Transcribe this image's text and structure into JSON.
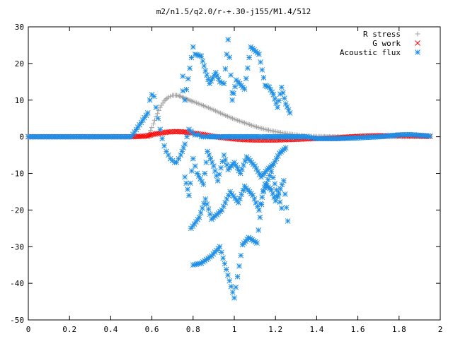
{
  "chart_data": {
    "type": "scatter",
    "title": "m2/n1.5/q2.0/r-+.30-j155/M1.4/512",
    "xlabel": "",
    "ylabel": "",
    "xlim": [
      0,
      2
    ],
    "ylim": [
      -50,
      30
    ],
    "x_ticks": [
      "0",
      "0.2",
      "0.4",
      "0.6",
      "0.8",
      "1",
      "1.2",
      "1.4",
      "1.6",
      "1.8",
      "2"
    ],
    "y_ticks": [
      "30",
      "20",
      "10",
      "0",
      "-10",
      "-20",
      "-30",
      "-40",
      "-50"
    ],
    "grid": false,
    "legend_position": "top-right",
    "series": [
      {
        "name": "R stress",
        "marker": "plus",
        "color": "#a0a0a0",
        "x": [
          0.0,
          0.1,
          0.2,
          0.3,
          0.4,
          0.5,
          0.58,
          0.6,
          0.62,
          0.64,
          0.66,
          0.68,
          0.7,
          0.72,
          0.74,
          0.76,
          0.78,
          0.8,
          0.85,
          0.9,
          0.95,
          1.0,
          1.05,
          1.1,
          1.15,
          1.2,
          1.25,
          1.3,
          1.35,
          1.4,
          1.5,
          1.6,
          1.7,
          1.8,
          1.9,
          1.95
        ],
        "y": [
          0,
          0,
          0,
          0,
          0,
          0,
          0.2,
          2.5,
          5.5,
          8.0,
          9.8,
          10.8,
          11.3,
          11.3,
          11.0,
          10.5,
          10.0,
          9.6,
          8.5,
          7.3,
          6.0,
          4.8,
          3.8,
          2.8,
          2.0,
          1.4,
          0.9,
          0.5,
          0.2,
          0.1,
          0,
          0,
          0,
          0,
          0,
          0
        ]
      },
      {
        "name": "G work",
        "marker": "cross",
        "color": "#ff0000",
        "x": [
          0.0,
          0.1,
          0.2,
          0.3,
          0.4,
          0.5,
          0.58,
          0.6,
          0.64,
          0.68,
          0.72,
          0.76,
          0.8,
          0.85,
          0.9,
          0.95,
          1.0,
          1.05,
          1.1,
          1.15,
          1.2,
          1.25,
          1.3,
          1.35,
          1.4,
          1.5,
          1.6,
          1.7,
          1.8,
          1.9,
          1.95
        ],
        "y": [
          0,
          0,
          0,
          0,
          0,
          0,
          0.2,
          0.6,
          1.0,
          1.3,
          1.4,
          1.3,
          1.0,
          0.6,
          0.1,
          -0.3,
          -0.6,
          -0.8,
          -0.9,
          -0.9,
          -0.9,
          -0.8,
          -0.7,
          -0.6,
          -0.5,
          -0.3,
          0.1,
          0.3,
          0.3,
          0.2,
          0.1
        ]
      },
      {
        "name": "Acoustic flux",
        "marker": "star",
        "color": "#1e8ee6",
        "x": [
          0.0,
          0.1,
          0.2,
          0.3,
          0.4,
          0.5,
          0.58,
          0.59,
          0.6,
          0.61,
          0.62,
          0.63,
          0.64,
          0.65,
          0.66,
          0.67,
          0.68,
          0.69,
          0.7,
          0.71,
          0.72,
          0.73,
          0.74,
          0.76,
          0.77,
          0.78,
          0.79,
          0.8,
          0.81,
          0.82,
          0.83,
          0.84,
          0.85,
          0.86,
          0.87,
          0.88,
          0.9,
          0.92,
          0.94,
          0.96,
          0.98,
          1.0,
          1.02,
          1.04,
          1.06,
          1.08,
          1.1,
          1.12,
          1.14,
          1.16,
          1.18,
          1.2,
          1.22,
          1.24,
          1.26,
          1.28,
          1.3,
          1.32,
          1.35,
          1.4,
          1.5,
          1.6,
          1.7,
          1.8,
          1.85,
          1.9,
          1.95,
          0.75,
          0.75,
          0.76,
          0.8,
          0.81,
          0.84,
          0.86,
          0.88,
          0.91,
          0.93,
          0.95,
          0.97,
          0.99,
          0.99,
          1.01,
          1.05,
          1.08,
          1.12,
          1.15,
          1.17,
          1.19,
          1.21,
          1.23,
          1.25,
          1.27,
          0.76,
          0.78,
          0.8,
          0.82,
          0.85,
          0.87,
          0.9,
          0.92,
          0.95,
          0.97,
          1.0,
          1.03,
          1.06,
          1.1,
          1.13,
          1.16,
          1.19,
          1.22,
          1.25,
          0.79,
          0.83,
          0.86,
          0.89,
          0.94,
          0.98,
          1.02,
          1.05,
          1.09,
          1.12,
          1.15,
          1.18,
          1.2,
          1.24,
          1.26,
          0.8,
          0.84,
          0.89,
          0.93,
          1.0,
          1.04,
          1.07,
          1.11,
          1.14,
          1.18,
          1.23
        ],
        "y": [
          0,
          0,
          0,
          0,
          0,
          0,
          6.5,
          10.0,
          11.5,
          11.0,
          8.0,
          5.0,
          2.0,
          -0.5,
          -2.5,
          -4.0,
          -5.0,
          -6.0,
          -6.5,
          -7.0,
          -7.0,
          -6.0,
          -5.0,
          -2.0,
          0.0,
          2.0,
          1.5,
          1.0,
          0.5,
          0.5,
          0.5,
          0.0,
          0.0,
          0.0,
          0.0,
          0.0,
          0.0,
          0.0,
          0.0,
          0.0,
          0.0,
          0.0,
          0.0,
          0.0,
          0.0,
          0.0,
          0.0,
          0.0,
          0.0,
          0.0,
          0.0,
          0.0,
          0.0,
          0.0,
          0.0,
          0.0,
          0.0,
          0.0,
          0.0,
          -0.5,
          -0.5,
          -0.3,
          0.0,
          0.5,
          0.6,
          0.4,
          0.2,
          16.5,
          12.5,
          10.0,
          24.5,
          22.5,
          22.0,
          18.0,
          14.5,
          17.5,
          15.0,
          14.5,
          26.5,
          12.0,
          10.0,
          15.5,
          13.0,
          24.5,
          22.5,
          14.0,
          13.5,
          11.5,
          8.0,
          13.5,
          9.0,
          6.5,
          -11.0,
          -16.0,
          -6.0,
          -10.0,
          -13.0,
          -4.0,
          -8.0,
          -12.0,
          -5.0,
          -9.0,
          -7.0,
          -10.0,
          -5.5,
          -8.0,
          -11.0,
          -9.0,
          -7.5,
          -4.5,
          -3.0,
          -25.0,
          -22.0,
          -17.0,
          -22.5,
          -20.0,
          -15.0,
          -18.0,
          -13.5,
          -16.0,
          -20.0,
          -13.0,
          -14.5,
          -17.5,
          -12.0,
          -23.0,
          -35.0,
          -34.5,
          -32.5,
          -30.0,
          -44.0,
          -29.5,
          -27.5,
          -29.0,
          -15.0,
          -9.5,
          -19.5
        ]
      }
    ]
  }
}
